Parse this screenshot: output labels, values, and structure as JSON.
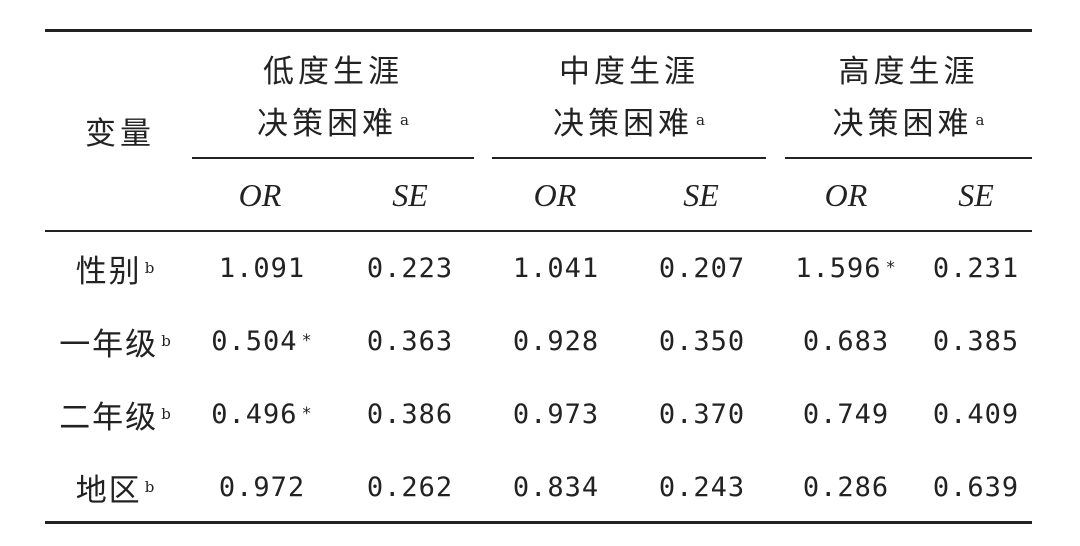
{
  "table": {
    "variable_header": "变量",
    "groups": [
      {
        "line1": "低度生涯",
        "line2": "决策困难",
        "sup": "a"
      },
      {
        "line1": "中度生涯",
        "line2": "决策困难",
        "sup": "a"
      },
      {
        "line1": "高度生涯",
        "line2": "决策困难",
        "sup": "a"
      }
    ],
    "stat_headers": [
      "OR",
      "SE",
      "OR",
      "SE",
      "OR",
      "SE"
    ],
    "rows": [
      {
        "label": "性别",
        "sup": "b",
        "cells": [
          {
            "v": "1.091",
            "star": ""
          },
          {
            "v": "0.223",
            "star": ""
          },
          {
            "v": "1.041",
            "star": ""
          },
          {
            "v": "0.207",
            "star": ""
          },
          {
            "v": "1.596",
            "star": "*"
          },
          {
            "v": "0.231",
            "star": ""
          }
        ]
      },
      {
        "label": "一年级",
        "sup": "b",
        "cells": [
          {
            "v": "0.504",
            "star": "*"
          },
          {
            "v": "0.363",
            "star": ""
          },
          {
            "v": "0.928",
            "star": ""
          },
          {
            "v": "0.350",
            "star": ""
          },
          {
            "v": "0.683",
            "star": ""
          },
          {
            "v": "0.385",
            "star": ""
          }
        ]
      },
      {
        "label": "二年级",
        "sup": "b",
        "cells": [
          {
            "v": "0.496",
            "star": "*"
          },
          {
            "v": "0.386",
            "star": ""
          },
          {
            "v": "0.973",
            "star": ""
          },
          {
            "v": "0.370",
            "star": ""
          },
          {
            "v": "0.749",
            "star": ""
          },
          {
            "v": "0.409",
            "star": ""
          }
        ]
      },
      {
        "label": "地区",
        "sup": "b",
        "cells": [
          {
            "v": "0.972",
            "star": ""
          },
          {
            "v": "0.262",
            "star": ""
          },
          {
            "v": "0.834",
            "star": ""
          },
          {
            "v": "0.243",
            "star": ""
          },
          {
            "v": "0.286",
            "star": ""
          },
          {
            "v": "0.639",
            "star": ""
          }
        ]
      }
    ]
  }
}
